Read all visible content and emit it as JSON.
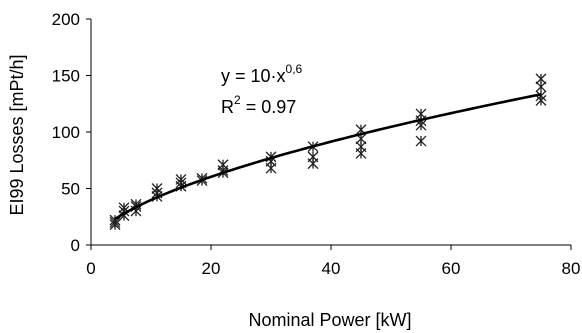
{
  "chart_data": {
    "type": "scatter",
    "xlabel": "Nominal Power [kW]",
    "ylabel": "EI99 Losses [mPt/h]",
    "xlim": [
      0,
      80
    ],
    "ylim": [
      0,
      200
    ],
    "xticks": [
      0,
      20,
      40,
      60,
      80
    ],
    "yticks": [
      0,
      50,
      100,
      150,
      200
    ],
    "grid": false,
    "legend": "none",
    "marker": "asterisk",
    "series": [
      {
        "points": [
          [
            4,
            18
          ],
          [
            4,
            20
          ],
          [
            4,
            22
          ],
          [
            5.5,
            26
          ],
          [
            5.5,
            30
          ],
          [
            5.5,
            33
          ],
          [
            7.5,
            30
          ],
          [
            7.5,
            34
          ],
          [
            7.5,
            36
          ],
          [
            11,
            43
          ],
          [
            11,
            46
          ],
          [
            11,
            50
          ],
          [
            15,
            52
          ],
          [
            15,
            55
          ],
          [
            15,
            58
          ],
          [
            18.5,
            57
          ],
          [
            18.5,
            59
          ],
          [
            22,
            64
          ],
          [
            22,
            66
          ],
          [
            22,
            71
          ],
          [
            30,
            68
          ],
          [
            30,
            74
          ],
          [
            30,
            78
          ],
          [
            37,
            72
          ],
          [
            37,
            78
          ],
          [
            37,
            87
          ],
          [
            45,
            81
          ],
          [
            45,
            87
          ],
          [
            45,
            94
          ],
          [
            45,
            102
          ],
          [
            55,
            92
          ],
          [
            55,
            106
          ],
          [
            55,
            110
          ],
          [
            55,
            116
          ],
          [
            75,
            128
          ],
          [
            75,
            132
          ],
          [
            75,
            140
          ],
          [
            75,
            147
          ]
        ]
      },
      {
        "type": "line",
        "fit": "power",
        "coefficient": 10,
        "exponent": 0.6,
        "x_range": [
          4,
          75
        ]
      }
    ],
    "annotation": {
      "equation_base": "y = 10·x",
      "equation_exp": "0,6",
      "r2_base": "R",
      "r2_sup": "2",
      "r2_rest": " = 0.97"
    }
  }
}
